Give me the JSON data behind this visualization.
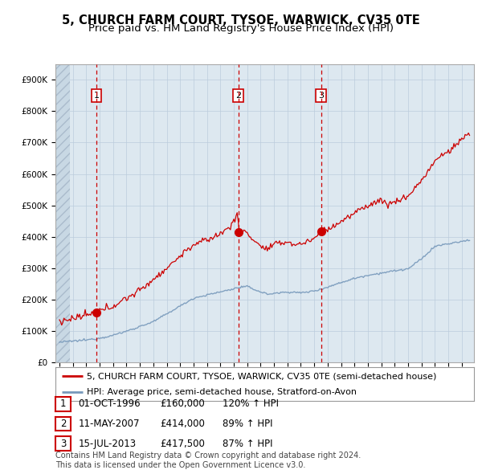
{
  "title_line1": "5, CHURCH FARM COURT, TYSOE, WARWICK, CV35 0TE",
  "title_line2": "Price paid vs. HM Land Registry's House Price Index (HPI)",
  "legend_line1": "5, CHURCH FARM COURT, TYSOE, WARWICK, CV35 0TE (semi-detached house)",
  "legend_line2": "HPI: Average price, semi-detached house, Stratford-on-Avon",
  "footnote": "Contains HM Land Registry data © Crown copyright and database right 2024.\nThis data is licensed under the Open Government Licence v3.0.",
  "sale_prices": [
    160000,
    414000,
    417500
  ],
  "sale_labels": [
    "1",
    "2",
    "3"
  ],
  "table_rows": [
    {
      "label": "1",
      "date": "01-OCT-1996",
      "price": "£160,000",
      "hpi": "120% ↑ HPI"
    },
    {
      "label": "2",
      "date": "11-MAY-2007",
      "price": "£414,000",
      "hpi": "89% ↑ HPI"
    },
    {
      "label": "3",
      "date": "15-JUL-2013",
      "price": "£417,500",
      "hpi": "87% ↑ HPI"
    }
  ],
  "red_line_color": "#cc0000",
  "blue_line_color": "#7799bb",
  "sale_marker_color": "#cc0000",
  "dashed_line_color": "#cc0000",
  "grid_color": "#bbccdd",
  "plot_bg_color": "#dde8f0",
  "background_color": "#ffffff",
  "ylim": [
    0,
    950000
  ],
  "yticks": [
    0,
    100000,
    200000,
    300000,
    400000,
    500000,
    600000,
    700000,
    800000,
    900000
  ],
  "title_fontsize": 10.5,
  "subtitle_fontsize": 9.5,
  "legend_fontsize": 8.0,
  "table_fontsize": 8.5,
  "footnote_fontsize": 7.0,
  "tick_fontsize": 7.5
}
